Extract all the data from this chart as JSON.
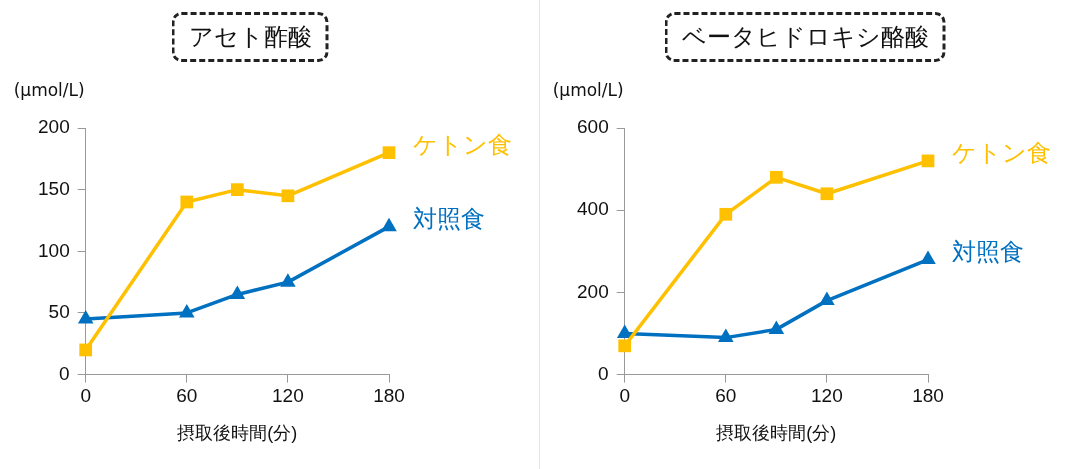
{
  "chart_data": [
    {
      "type": "line",
      "title": "アセト酢酸",
      "ylabel": "(μmol/L)",
      "xlabel": "摂取後時間(分)",
      "x": [
        0,
        60,
        90,
        120,
        180
      ],
      "xlim": [
        0,
        180
      ],
      "xticks": [
        0,
        60,
        120,
        180
      ],
      "ylim": [
        0,
        200
      ],
      "yticks": [
        0,
        50,
        100,
        150,
        200
      ],
      "grid": false,
      "legend": false,
      "line_style": "solid",
      "series": [
        {
          "name": "ケトン食",
          "color": "#ffc000",
          "marker": "square",
          "values": [
            20,
            140,
            150,
            145,
            180
          ]
        },
        {
          "name": "対照食",
          "color": "#0070c0",
          "marker": "triangle",
          "values": [
            45,
            50,
            65,
            75,
            120
          ]
        }
      ]
    },
    {
      "type": "line",
      "title": "ベータヒドロキシ酪酸",
      "ylabel": "(μmol/L)",
      "xlabel": "摂取後時間(分)",
      "x": [
        0,
        60,
        90,
        120,
        180
      ],
      "xlim": [
        0,
        180
      ],
      "xticks": [
        0,
        60,
        120,
        180
      ],
      "ylim": [
        0,
        600
      ],
      "yticks": [
        0,
        200,
        400,
        600
      ],
      "grid": false,
      "legend": false,
      "line_style": "solid",
      "series": [
        {
          "name": "ケトン食",
          "color": "#ffc000",
          "marker": "square",
          "values": [
            70,
            390,
            480,
            440,
            520
          ]
        },
        {
          "name": "対照食",
          "color": "#0070c0",
          "marker": "triangle",
          "values": [
            100,
            90,
            110,
            180,
            280
          ]
        }
      ]
    }
  ]
}
